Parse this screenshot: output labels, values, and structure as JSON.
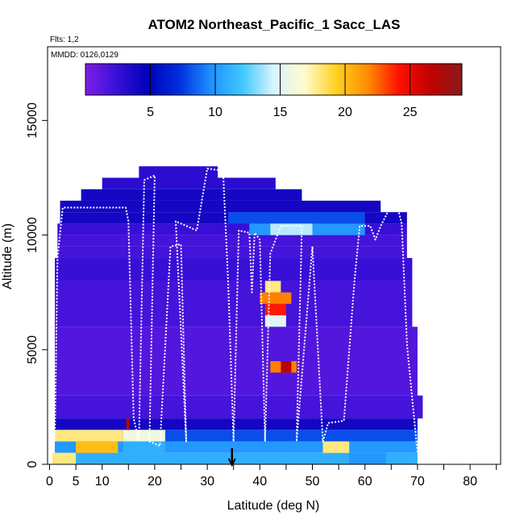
{
  "chart_data": {
    "type": "heatmap",
    "title": "ATOM2 Northeast_Pacific_1 Sacc_LAS",
    "flights_label": "Flts: 1,2",
    "dates_label": "MMDD: 0126,0129",
    "xlabel": "Latitude (deg N)",
    "ylabel": "Altitude (m)",
    "xlim": [
      0,
      85
    ],
    "ylim": [
      0,
      18000
    ],
    "x_ticks": [
      0,
      5,
      10,
      20,
      30,
      40,
      50,
      60,
      70,
      80
    ],
    "x_minor_ticks": [
      15,
      25,
      35,
      45,
      55,
      65,
      75,
      85
    ],
    "y_ticks": [
      0,
      5000,
      10000,
      15000
    ],
    "colorbar": {
      "min": 0,
      "max": 29,
      "ticks": [
        5,
        10,
        15,
        20,
        25
      ],
      "colors": [
        "#7b1fe6",
        "#3a10d8",
        "#0000b8",
        "#0030e0",
        "#1e90ff",
        "#40c8ff",
        "#d8f4ff",
        "#fffccc",
        "#ffd020",
        "#ff8c00",
        "#ff1000",
        "#c00000",
        "#8b1a1a"
      ]
    },
    "marker_latitude": 34.7,
    "cells": [
      {
        "lat": [
          17,
          32
        ],
        "alt": [
          12500,
          13000
        ],
        "value": 3
      },
      {
        "lat": [
          10,
          43
        ],
        "alt": [
          12000,
          12500
        ],
        "value": 3
      },
      {
        "lat": [
          6,
          48
        ],
        "alt": [
          11500,
          12000
        ],
        "value": 4
      },
      {
        "lat": [
          2,
          63
        ],
        "alt": [
          11000,
          11500
        ],
        "value": 4
      },
      {
        "lat": [
          2,
          68
        ],
        "alt": [
          10500,
          11000
        ],
        "value": 4
      },
      {
        "lat": [
          1.5,
          68
        ],
        "alt": [
          10000,
          10500
        ],
        "value": 2.5
      },
      {
        "lat": [
          1.5,
          68
        ],
        "alt": [
          9500,
          10000
        ],
        "value": 2
      },
      {
        "lat": [
          1.5,
          68
        ],
        "alt": [
          9000,
          9500
        ],
        "value": 2
      },
      {
        "lat": [
          1,
          69
        ],
        "alt": [
          8000,
          9000
        ],
        "value": 2.5
      },
      {
        "lat": [
          1,
          69
        ],
        "alt": [
          6000,
          8000
        ],
        "value": 2
      },
      {
        "lat": [
          1,
          70
        ],
        "alt": [
          3000,
          6000
        ],
        "value": 1.5
      },
      {
        "lat": [
          1,
          71
        ],
        "alt": [
          2000,
          3000
        ],
        "value": 2
      },
      {
        "lat": [
          1,
          70
        ],
        "alt": [
          1500,
          2000
        ],
        "value": 4
      },
      {
        "lat": [
          1,
          70
        ],
        "alt": [
          1000,
          1500
        ],
        "value": 8
      },
      {
        "lat": [
          1,
          70
        ],
        "alt": [
          500,
          1000
        ],
        "value": 10
      },
      {
        "lat": [
          1,
          70
        ],
        "alt": [
          0,
          500
        ],
        "value": 11
      },
      {
        "lat": [
          34,
          60
        ],
        "alt": [
          10500,
          11000
        ],
        "value": 8
      },
      {
        "lat": [
          38,
          60
        ],
        "alt": [
          10000,
          10500
        ],
        "value": 10
      },
      {
        "lat": [
          42,
          50
        ],
        "alt": [
          10000,
          10500
        ],
        "value": 14
      },
      {
        "lat": [
          40,
          46
        ],
        "alt": [
          7000,
          7500
        ],
        "value": 22
      },
      {
        "lat": [
          41,
          45
        ],
        "alt": [
          6500,
          7000
        ],
        "value": 24
      },
      {
        "lat": [
          41,
          44
        ],
        "alt": [
          7500,
          8000
        ],
        "value": 18
      },
      {
        "lat": [
          41,
          45
        ],
        "alt": [
          6000,
          6500
        ],
        "value": 15
      },
      {
        "lat": [
          42,
          47
        ],
        "alt": [
          4000,
          4500
        ],
        "value": 22
      },
      {
        "lat": [
          44,
          46
        ],
        "alt": [
          4000,
          4500
        ],
        "value": 27
      },
      {
        "lat": [
          1,
          14
        ],
        "alt": [
          1000,
          1500
        ],
        "value": 18
      },
      {
        "lat": [
          5,
          13
        ],
        "alt": [
          500,
          1000
        ],
        "value": 20
      },
      {
        "lat": [
          0.5,
          5
        ],
        "alt": [
          0,
          500
        ],
        "value": 18
      },
      {
        "lat": [
          14,
          22
        ],
        "alt": [
          1000,
          1500
        ],
        "value": 16
      },
      {
        "lat": [
          14,
          22
        ],
        "alt": [
          500,
          1000
        ],
        "value": 11
      },
      {
        "lat": [
          52,
          57
        ],
        "alt": [
          500,
          1000
        ],
        "value": 18
      },
      {
        "lat": [
          57,
          64
        ],
        "alt": [
          0,
          500
        ],
        "value": 10
      },
      {
        "lat": [
          14.6,
          15.2
        ],
        "alt": [
          1500,
          2000
        ],
        "value": 27
      }
    ],
    "flight_track": [
      [
        1,
        1000
      ],
      [
        1.5,
        9000
      ],
      [
        2.5,
        11200
      ],
      [
        14.5,
        11200
      ],
      [
        15,
        10600
      ],
      [
        16,
        2000
      ],
      [
        17,
        1000
      ],
      [
        18,
        12400
      ],
      [
        20,
        12600
      ],
      [
        19,
        1000
      ],
      [
        21,
        800
      ],
      [
        23,
        9500
      ],
      [
        25,
        9600
      ],
      [
        26,
        1000
      ],
      [
        24,
        10600
      ],
      [
        28,
        10200
      ],
      [
        30,
        12900
      ],
      [
        33,
        12800
      ],
      [
        34,
        7800
      ],
      [
        35,
        1000
      ],
      [
        36,
        10200
      ],
      [
        38,
        10100
      ],
      [
        38.5,
        7500
      ],
      [
        39,
        10100
      ],
      [
        40,
        9800
      ],
      [
        41,
        1000
      ],
      [
        42,
        9200
      ],
      [
        44,
        10400
      ],
      [
        48,
        10400
      ],
      [
        47,
        1000
      ],
      [
        50,
        9500
      ],
      [
        52,
        1000
      ],
      [
        53,
        1800
      ],
      [
        56,
        1900
      ],
      [
        58,
        8000
      ],
      [
        59,
        10400
      ],
      [
        61,
        10400
      ],
      [
        62,
        9800
      ],
      [
        63,
        10400
      ],
      [
        65,
        11300
      ],
      [
        66,
        11400
      ],
      [
        67,
        10500
      ],
      [
        68,
        5200
      ],
      [
        70,
        500
      ]
    ]
  }
}
